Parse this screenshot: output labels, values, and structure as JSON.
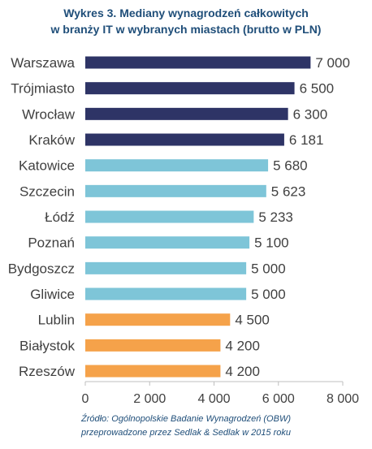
{
  "chart_data": {
    "type": "bar",
    "orientation": "horizontal",
    "title_lines": [
      "Wykres 3. Mediany wynagrodzeń całkowitych",
      "w branży IT w wybranych miastach (brutto w PLN)"
    ],
    "categories": [
      "Warszawa",
      "Trójmiasto",
      "Wrocław",
      "Kraków",
      "Katowice",
      "Szczecin",
      "Łódź",
      "Poznań",
      "Bydgoszcz",
      "Gliwice",
      "Lublin",
      "Białystok",
      "Rzeszów"
    ],
    "values": [
      7000,
      6500,
      6300,
      6181,
      5680,
      5623,
      5233,
      5100,
      5000,
      5000,
      4500,
      4200,
      4200
    ],
    "value_labels": [
      "7 000",
      "6 500",
      "6 300",
      "6 181",
      "5 680",
      "5 623",
      "5 233",
      "5 100",
      "5 000",
      "5 000",
      "4 500",
      "4 200",
      "4 200"
    ],
    "bar_colors": [
      "#2e3466",
      "#2e3466",
      "#2e3466",
      "#2e3466",
      "#7ec5d8",
      "#7ec5d8",
      "#7ec5d8",
      "#7ec5d8",
      "#7ec5d8",
      "#7ec5d8",
      "#f5a24a",
      "#f5a24a",
      "#f5a24a"
    ],
    "xlim": [
      0,
      8000
    ],
    "xticks": [
      0,
      2000,
      4000,
      6000,
      8000
    ],
    "xtick_labels": [
      "0",
      "2 000",
      "4 000",
      "6 000",
      "8 000"
    ],
    "grid": false,
    "source_lines": [
      "Źródło: Ogólnopolskie Badanie Wynagrodzeń (OBW)",
      "przeprowadzone  przez Sedlak & Sedlak w 2015 roku"
    ]
  },
  "colors": {
    "title": "#1f4e79",
    "text": "#404040",
    "axis": "#bfbfbf"
  }
}
